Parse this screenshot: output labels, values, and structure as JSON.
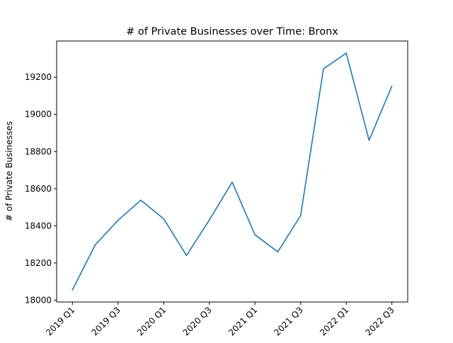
{
  "chart_data": {
    "type": "line",
    "title": "# of Private Businesses over Time: Bronx",
    "xlabel": "",
    "ylabel": "# of Private Businesses",
    "categories": [
      "2019 Q1",
      "2019 Q2",
      "2019 Q3",
      "2019 Q4",
      "2020 Q1",
      "2020 Q2",
      "2020 Q3",
      "2020 Q4",
      "2021 Q1",
      "2021 Q2",
      "2021 Q3",
      "2021 Q4",
      "2022 Q1",
      "2022 Q2",
      "2022 Q3"
    ],
    "x_tick_labels": [
      "2019 Q1",
      "2019 Q3",
      "2020 Q1",
      "2020 Q3",
      "2021 Q1",
      "2021 Q3",
      "2022 Q1",
      "2022 Q3"
    ],
    "y_ticks": [
      18000,
      18200,
      18400,
      18600,
      18800,
      19000,
      19200
    ],
    "ylim": [
      17990,
      19395
    ],
    "grid": false,
    "series": [
      {
        "values": [
          18055,
          18298,
          18430,
          18538,
          18438,
          18240,
          18432,
          18635,
          18352,
          18260,
          18455,
          19245,
          19330,
          18860,
          19153
        ],
        "color": "#1f77b4"
      }
    ]
  }
}
